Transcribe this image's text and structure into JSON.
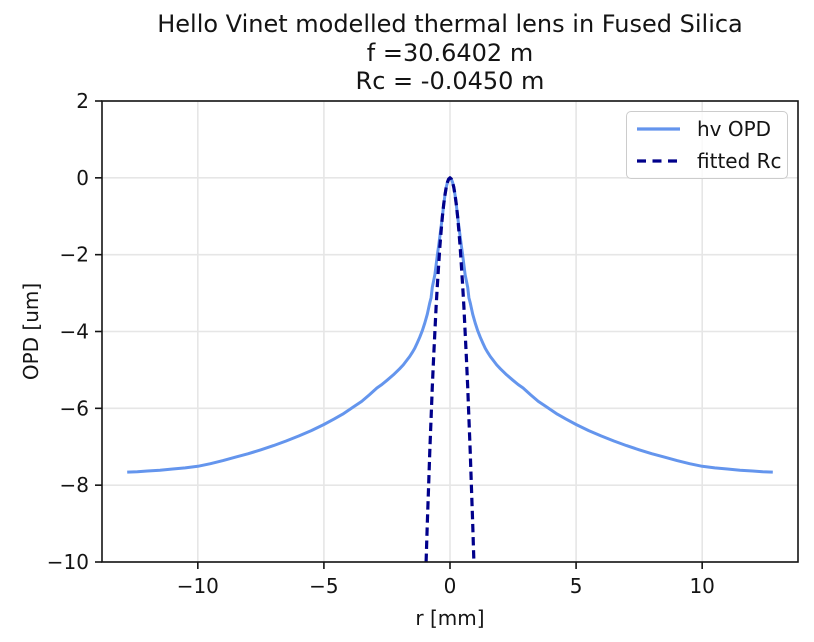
{
  "chart_data": {
    "type": "line",
    "title": "Hello Vinet modelled thermal lens in Fused Silica\nf =30.6402 m\nRc = -0.0450 m",
    "title_lines": [
      "Hello Vinet modelled thermal lens in Fused Silica",
      "f =30.6402 m",
      "Rc = -0.0450 m"
    ],
    "xlabel": "r [mm]",
    "ylabel": "OPD [um]",
    "xlim": [
      -13.8,
      13.8
    ],
    "ylim": [
      -10,
      2
    ],
    "grid": true,
    "grid_color": "#e6e6e6",
    "background_color": "#ffffff",
    "text_color": "#141414",
    "legend_position": "upper right",
    "xticks": [
      {
        "v": -10,
        "label": "−10"
      },
      {
        "v": -5,
        "label": "−5"
      },
      {
        "v": 0,
        "label": "0"
      },
      {
        "v": 5,
        "label": "5"
      },
      {
        "v": 10,
        "label": "10"
      }
    ],
    "yticks": [
      {
        "v": 2,
        "label": "2"
      },
      {
        "v": 0,
        "label": "0"
      },
      {
        "v": -2,
        "label": "−2"
      },
      {
        "v": -4,
        "label": "−4"
      },
      {
        "v": -6,
        "label": "−6"
      },
      {
        "v": -8,
        "label": "−8"
      },
      {
        "v": -10,
        "label": "−10"
      }
    ],
    "series": [
      {
        "name": "hv OPD",
        "color": "#6495ED",
        "style": "solid",
        "width": 3,
        "points": [
          [
            -12.8,
            -7.66
          ],
          [
            -12.4,
            -7.65
          ],
          [
            -12.0,
            -7.63
          ],
          [
            -11.5,
            -7.61
          ],
          [
            -11.0,
            -7.58
          ],
          [
            -10.5,
            -7.55
          ],
          [
            -10.0,
            -7.51
          ],
          [
            -9.5,
            -7.44
          ],
          [
            -9.0,
            -7.36
          ],
          [
            -8.5,
            -7.27
          ],
          [
            -8.0,
            -7.18
          ],
          [
            -7.5,
            -7.08
          ],
          [
            -7.0,
            -6.97
          ],
          [
            -6.5,
            -6.85
          ],
          [
            -6.0,
            -6.72
          ],
          [
            -5.5,
            -6.58
          ],
          [
            -5.0,
            -6.42
          ],
          [
            -4.6,
            -6.28
          ],
          [
            -4.25,
            -6.15
          ],
          [
            -3.8,
            -5.95
          ],
          [
            -3.5,
            -5.82
          ],
          [
            -3.2,
            -5.65
          ],
          [
            -2.9,
            -5.47
          ],
          [
            -2.7,
            -5.38
          ],
          [
            -2.5,
            -5.27
          ],
          [
            -2.25,
            -5.13
          ],
          [
            -2.0,
            -4.97
          ],
          [
            -1.85,
            -4.87
          ],
          [
            -1.7,
            -4.74
          ],
          [
            -1.6,
            -4.65
          ],
          [
            -1.5,
            -4.55
          ],
          [
            -1.4,
            -4.44
          ],
          [
            -1.3,
            -4.3
          ],
          [
            -1.2,
            -4.15
          ],
          [
            -1.1,
            -3.98
          ],
          [
            -1.0,
            -3.78
          ],
          [
            -0.9,
            -3.55
          ],
          [
            -0.8,
            -3.25
          ],
          [
            -0.75,
            -3.12
          ],
          [
            -0.7,
            -2.85
          ],
          [
            -0.6,
            -2.52
          ],
          [
            -0.55,
            -2.27
          ],
          [
            -0.5,
            -2.0
          ],
          [
            -0.45,
            -1.76
          ],
          [
            -0.4,
            -1.52
          ],
          [
            -0.35,
            -1.25
          ],
          [
            -0.3,
            -1.0
          ],
          [
            -0.25,
            -0.7
          ],
          [
            -0.2,
            -0.44
          ],
          [
            -0.15,
            -0.25
          ],
          [
            -0.1,
            -0.11
          ],
          [
            -0.05,
            -0.03
          ],
          [
            0,
            0
          ],
          [
            0.05,
            -0.03
          ],
          [
            0.1,
            -0.11
          ],
          [
            0.15,
            -0.25
          ],
          [
            0.2,
            -0.44
          ],
          [
            0.25,
            -0.7
          ],
          [
            0.3,
            -1.0
          ],
          [
            0.35,
            -1.25
          ],
          [
            0.4,
            -1.52
          ],
          [
            0.45,
            -1.76
          ],
          [
            0.5,
            -2.0
          ],
          [
            0.55,
            -2.27
          ],
          [
            0.6,
            -2.52
          ],
          [
            0.7,
            -2.85
          ],
          [
            0.75,
            -3.12
          ],
          [
            0.8,
            -3.25
          ],
          [
            0.9,
            -3.55
          ],
          [
            1.0,
            -3.78
          ],
          [
            1.1,
            -3.98
          ],
          [
            1.2,
            -4.15
          ],
          [
            1.3,
            -4.3
          ],
          [
            1.4,
            -4.44
          ],
          [
            1.5,
            -4.55
          ],
          [
            1.6,
            -4.65
          ],
          [
            1.7,
            -4.74
          ],
          [
            1.85,
            -4.87
          ],
          [
            2.0,
            -4.97
          ],
          [
            2.25,
            -5.13
          ],
          [
            2.5,
            -5.27
          ],
          [
            2.7,
            -5.38
          ],
          [
            2.9,
            -5.47
          ],
          [
            3.2,
            -5.65
          ],
          [
            3.5,
            -5.82
          ],
          [
            3.8,
            -5.95
          ],
          [
            4.25,
            -6.15
          ],
          [
            4.6,
            -6.28
          ],
          [
            5.0,
            -6.42
          ],
          [
            5.5,
            -6.58
          ],
          [
            6.0,
            -6.72
          ],
          [
            6.5,
            -6.85
          ],
          [
            7.0,
            -6.97
          ],
          [
            7.5,
            -7.08
          ],
          [
            8.0,
            -7.18
          ],
          [
            8.5,
            -7.27
          ],
          [
            9.0,
            -7.36
          ],
          [
            9.5,
            -7.44
          ],
          [
            10.0,
            -7.51
          ],
          [
            10.5,
            -7.55
          ],
          [
            11.0,
            -7.58
          ],
          [
            11.5,
            -7.61
          ],
          [
            12.0,
            -7.63
          ],
          [
            12.4,
            -7.65
          ],
          [
            12.8,
            -7.66
          ]
        ]
      },
      {
        "name": "fitted Rc",
        "color": "#00008B",
        "style": "dashed",
        "width": 3.2,
        "points": [
          [
            -0.949,
            -10
          ],
          [
            -0.9,
            -9.0
          ],
          [
            -0.85,
            -8.03
          ],
          [
            -0.8,
            -7.11
          ],
          [
            -0.75,
            -6.25
          ],
          [
            -0.7,
            -5.44
          ],
          [
            -0.65,
            -4.69
          ],
          [
            -0.6,
            -4.0
          ],
          [
            -0.55,
            -3.36
          ],
          [
            -0.5,
            -2.78
          ],
          [
            -0.45,
            -2.25
          ],
          [
            -0.4,
            -1.78
          ],
          [
            -0.35,
            -1.36
          ],
          [
            -0.3,
            -1.0
          ],
          [
            -0.25,
            -0.69
          ],
          [
            -0.2,
            -0.44
          ],
          [
            -0.15,
            -0.25
          ],
          [
            -0.1,
            -0.11
          ],
          [
            -0.05,
            -0.03
          ],
          [
            0,
            0
          ],
          [
            0.05,
            -0.03
          ],
          [
            0.1,
            -0.11
          ],
          [
            0.15,
            -0.25
          ],
          [
            0.2,
            -0.44
          ],
          [
            0.25,
            -0.69
          ],
          [
            0.3,
            -1.0
          ],
          [
            0.35,
            -1.36
          ],
          [
            0.4,
            -1.78
          ],
          [
            0.45,
            -2.25
          ],
          [
            0.5,
            -2.78
          ],
          [
            0.55,
            -3.36
          ],
          [
            0.6,
            -4.0
          ],
          [
            0.65,
            -4.69
          ],
          [
            0.7,
            -5.44
          ],
          [
            0.75,
            -6.25
          ],
          [
            0.8,
            -7.11
          ],
          [
            0.85,
            -8.03
          ],
          [
            0.9,
            -9.0
          ],
          [
            0.949,
            -10
          ]
        ]
      }
    ],
    "annotations": {
      "focal_length": "f =30.6402 m",
      "radius_of_curvature": "Rc = -0.0450 m"
    }
  }
}
